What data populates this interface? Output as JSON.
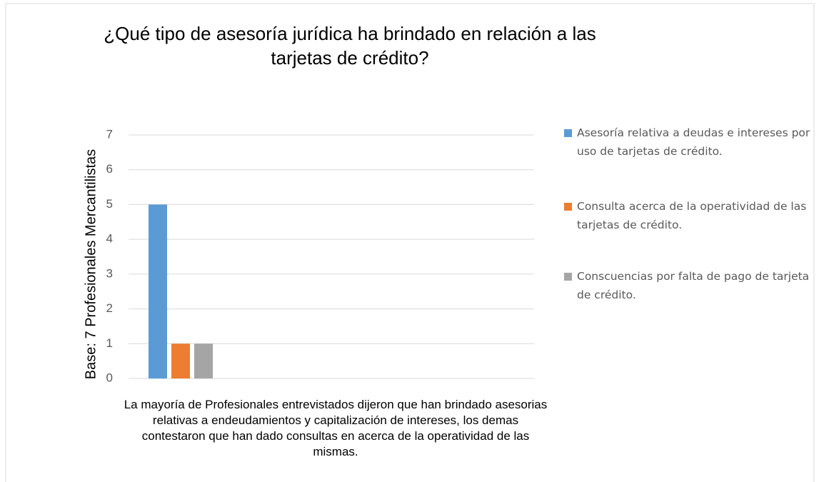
{
  "chart_data": {
    "type": "bar",
    "title": "¿Qué tipo de asesoría jurídica ha brindado en relación a las tarjetas de crédito?",
    "y_label": "Base: 7 Profesionales Mercantilistas",
    "x_label": "La mayoría de Profesionales entrevistados dijeron que han brindado asesorias relativas a endeudamientos y capitalización de intereses, los demas contestaron que han dado consultas en acerca de la operatividad de las mismas.",
    "categories": [
      null
    ],
    "series": [
      {
        "name": "Asesoría relativa a deudas e intereses por uso de tarjetas de crédito.",
        "color": "#5b9bd5",
        "values": [
          5
        ]
      },
      {
        "name": "Consulta acerca de la operatividad de las tarjetas de crédito.",
        "color": "#ed7d31",
        "values": [
          1
        ]
      },
      {
        "name": "Conscuencias por falta de pago de tarjeta de crédito.",
        "color": "#a5a5a5",
        "values": [
          1
        ]
      }
    ],
    "ylim": [
      0,
      7
    ],
    "yticks": [
      0,
      1,
      2,
      3,
      4,
      5,
      6,
      7
    ],
    "grid": true,
    "legend": "right"
  }
}
